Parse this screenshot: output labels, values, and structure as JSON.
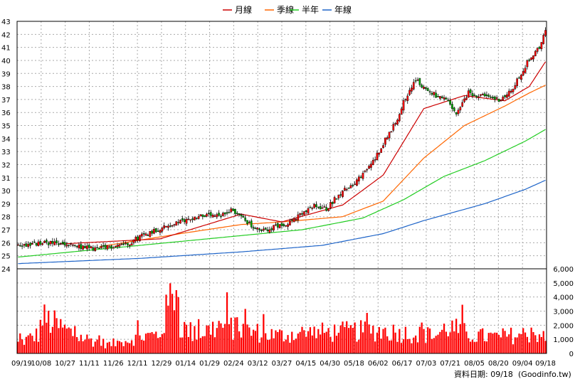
{
  "chart_data": {
    "type": "candlestick+volume",
    "legend": [
      {
        "name": "月線",
        "color": "#cc0000"
      },
      {
        "name": "季線",
        "color": "#ff6600"
      },
      {
        "name": "半年",
        "color": "#22cc22"
      },
      {
        "name": "年線",
        "color": "#1e64c8"
      }
    ],
    "price_axis": {
      "ticks": [
        24,
        25,
        26,
        27,
        28,
        29,
        30,
        31,
        32,
        33,
        34,
        35,
        36,
        37,
        38,
        39,
        40,
        41,
        42,
        43
      ],
      "ylim": [
        24,
        43
      ]
    },
    "volume_axis": {
      "ticks": [
        "0",
        "1,000",
        "2,000",
        "3,000",
        "4,000",
        "5,000",
        "6,000"
      ],
      "ylim": [
        0,
        6000
      ]
    },
    "x_labels": [
      "09/19",
      "10/08",
      "10/27",
      "11/11",
      "11/26",
      "12/11",
      "12/29",
      "01/14",
      "01/29",
      "02/24",
      "03/12",
      "03/27",
      "04/15",
      "04/30",
      "05/18",
      "06/02",
      "06/17",
      "07/03",
      "07/21",
      "08/05",
      "08/20",
      "09/04",
      "09/18"
    ],
    "close_keypoints": [
      [
        0,
        25.8
      ],
      [
        15,
        26.0
      ],
      [
        25,
        25.8
      ],
      [
        35,
        25.6
      ],
      [
        40,
        25.5
      ],
      [
        45,
        25.7
      ],
      [
        55,
        26.0
      ],
      [
        60,
        26.5
      ],
      [
        70,
        27.1
      ],
      [
        80,
        27.6
      ],
      [
        90,
        28.1
      ],
      [
        100,
        28.0
      ],
      [
        105,
        28.6
      ],
      [
        108,
        28.2
      ],
      [
        112,
        27.8
      ],
      [
        116,
        27.1
      ],
      [
        120,
        26.9
      ],
      [
        128,
        27.3
      ],
      [
        134,
        27.6
      ],
      [
        140,
        28.2
      ],
      [
        146,
        28.8
      ],
      [
        152,
        28.6
      ],
      [
        158,
        29.7
      ],
      [
        164,
        30.4
      ],
      [
        170,
        31.2
      ],
      [
        176,
        32.5
      ],
      [
        182,
        34.2
      ],
      [
        186,
        35.2
      ],
      [
        190,
        36.8
      ],
      [
        194,
        38.0
      ],
      [
        196,
        38.5
      ],
      [
        200,
        37.9
      ],
      [
        206,
        37.3
      ],
      [
        212,
        36.8
      ],
      [
        216,
        35.8
      ],
      [
        218,
        36.4
      ],
      [
        222,
        37.5
      ],
      [
        230,
        37.2
      ],
      [
        238,
        37.0
      ],
      [
        243,
        37.6
      ],
      [
        248,
        39.0
      ],
      [
        252,
        40.1
      ],
      [
        256,
        40.8
      ],
      [
        258,
        41.3
      ],
      [
        260,
        42.3
      ]
    ],
    "volume_keypoints": [
      [
        0,
        800
      ],
      [
        10,
        1500
      ],
      [
        12,
        2800
      ],
      [
        30,
        1300
      ],
      [
        45,
        700
      ],
      [
        60,
        1300
      ],
      [
        70,
        1500
      ],
      [
        78,
        5900
      ],
      [
        80,
        2100
      ],
      [
        88,
        1500
      ],
      [
        100,
        2200
      ],
      [
        112,
        1800
      ],
      [
        128,
        1400
      ],
      [
        140,
        1600
      ],
      [
        160,
        1700
      ],
      [
        178,
        1800
      ],
      [
        190,
        1600
      ],
      [
        206,
        1400
      ],
      [
        212,
        2100
      ],
      [
        224,
        1400
      ],
      [
        235,
        1300
      ],
      [
        250,
        1500
      ],
      [
        258,
        1600
      ],
      [
        260,
        900
      ]
    ],
    "moving_averages": {
      "monthly": [
        [
          20,
          25.9
        ],
        [
          70,
          26.3
        ],
        [
          110,
          28.2
        ],
        [
          130,
          27.6
        ],
        [
          160,
          28.9
        ],
        [
          180,
          31.2
        ],
        [
          200,
          36.3
        ],
        [
          220,
          37.3
        ],
        [
          240,
          36.9
        ],
        [
          252,
          38.0
        ],
        [
          260,
          39.9
        ]
      ],
      "quarterly": [
        [
          40,
          25.7
        ],
        [
          80,
          26.7
        ],
        [
          110,
          27.4
        ],
        [
          130,
          27.6
        ],
        [
          160,
          28.0
        ],
        [
          180,
          29.2
        ],
        [
          200,
          32.5
        ],
        [
          220,
          35.0
        ],
        [
          240,
          36.5
        ],
        [
          252,
          37.5
        ],
        [
          260,
          38.1
        ]
      ],
      "half_year": [
        [
          0,
          24.9
        ],
        [
          60,
          25.8
        ],
        [
          100,
          26.4
        ],
        [
          140,
          27.0
        ],
        [
          170,
          27.9
        ],
        [
          190,
          29.3
        ],
        [
          210,
          31.1
        ],
        [
          230,
          32.3
        ],
        [
          250,
          33.8
        ],
        [
          260,
          34.7
        ]
      ],
      "yearly": [
        [
          0,
          24.4
        ],
        [
          60,
          24.8
        ],
        [
          110,
          25.3
        ],
        [
          150,
          25.8
        ],
        [
          180,
          26.7
        ],
        [
          200,
          27.7
        ],
        [
          230,
          29.0
        ],
        [
          250,
          30.1
        ],
        [
          260,
          30.8
        ]
      ]
    },
    "credit": "資料日期: 09/18",
    "site": "(Goodinfo.tw)",
    "colors": {
      "up": "#ff0000",
      "down": "#00aa00",
      "wick": "#000000",
      "grid": "#aaaaaa",
      "axis": "#000000",
      "volume": "#ff0000"
    }
  }
}
